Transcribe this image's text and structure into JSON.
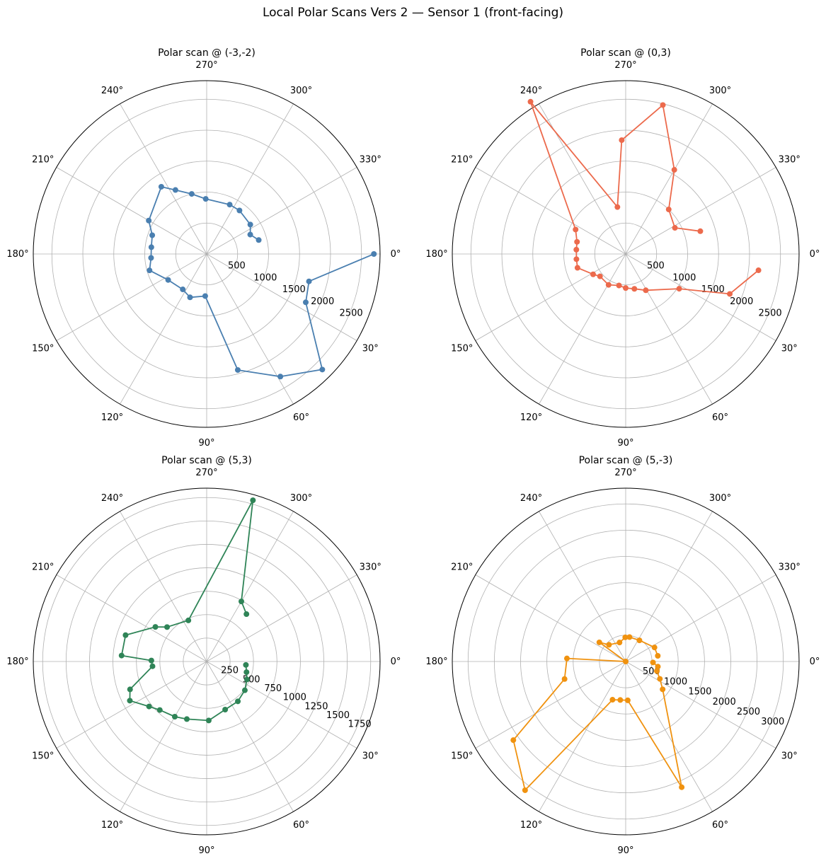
{
  "title": "Local Polar Scans Vers 2 — Sensor 1 (front-facing)",
  "chart_data": [
    {
      "type": "line",
      "projection": "polar",
      "title": "Polar scan @ (-3,-2)",
      "color": "#4a7fb0",
      "theta_direction": "clockwise",
      "theta_zero": "east",
      "theta_ticks": [
        0,
        30,
        60,
        90,
        120,
        150,
        180,
        210,
        240,
        270,
        300,
        330
      ],
      "theta_tick_labels": [
        "0°",
        "30°",
        "60°",
        "90°",
        "120°",
        "150°",
        "180°",
        "210°",
        "240°",
        "270°",
        "300°",
        "330°"
      ],
      "r_max": 2800,
      "r_ticks": [
        500,
        1000,
        1500,
        2000,
        2500
      ],
      "r_tick_labels": [
        "500",
        "1000",
        "1500",
        "2000",
        "2500"
      ],
      "grid": true,
      "points": [
        {
          "theta": 345,
          "r": 870
        },
        {
          "theta": 336,
          "r": 770
        },
        {
          "theta": 326,
          "r": 850
        },
        {
          "theta": 307,
          "r": 880
        },
        {
          "theta": 295,
          "r": 880
        },
        {
          "theta": 269,
          "r": 890
        },
        {
          "theta": 256,
          "r": 1000
        },
        {
          "theta": 244,
          "r": 1150
        },
        {
          "theta": 236,
          "r": 1310
        },
        {
          "theta": 210,
          "r": 1080
        },
        {
          "theta": 199,
          "r": 930
        },
        {
          "theta": 187,
          "r": 900
        },
        {
          "theta": 176,
          "r": 900
        },
        {
          "theta": 164,
          "r": 960
        },
        {
          "theta": 146,
          "r": 750
        },
        {
          "theta": 124,
          "r": 690
        },
        {
          "theta": 111,
          "r": 750
        },
        {
          "theta": 92,
          "r": 680
        },
        {
          "theta": 75,
          "r": 1940
        },
        {
          "theta": 59,
          "r": 2310
        },
        {
          "theta": 45,
          "r": 2640
        },
        {
          "theta": 26,
          "r": 1780
        },
        {
          "theta": 15,
          "r": 1710
        },
        {
          "theta": 0,
          "r": 2700
        }
      ]
    },
    {
      "type": "line",
      "projection": "polar",
      "title": "Polar scan @ (0,3)",
      "color": "#ec6a4c",
      "theta_direction": "clockwise",
      "theta_zero": "east",
      "theta_ticks": [
        0,
        30,
        60,
        90,
        120,
        150,
        180,
        210,
        240,
        270,
        300,
        330
      ],
      "theta_tick_labels": [
        "0°",
        "30°",
        "60°",
        "90°",
        "120°",
        "150°",
        "180°",
        "210°",
        "240°",
        "270°",
        "300°",
        "330°"
      ],
      "r_max": 2800,
      "r_ticks": [
        500,
        1000,
        1500,
        2000,
        2500
      ],
      "r_tick_labels": [
        "500",
        "1000",
        "1500",
        "2000",
        "2500"
      ],
      "grid": true,
      "points": [
        {
          "theta": 343,
          "r": 1260
        },
        {
          "theta": 332,
          "r": 900
        },
        {
          "theta": 314,
          "r": 1000
        },
        {
          "theta": 300,
          "r": 1570
        },
        {
          "theta": 284,
          "r": 2480
        },
        {
          "theta": 268,
          "r": 1840
        },
        {
          "theta": 260,
          "r": 770
        },
        {
          "theta": 238,
          "r": 2900
        },
        {
          "theta": 206,
          "r": 900
        },
        {
          "theta": 194,
          "r": 810
        },
        {
          "theta": 185,
          "r": 800
        },
        {
          "theta": 174,
          "r": 800
        },
        {
          "theta": 164,
          "r": 810
        },
        {
          "theta": 148,
          "r": 620
        },
        {
          "theta": 139,
          "r": 550
        },
        {
          "theta": 119,
          "r": 570
        },
        {
          "theta": 102,
          "r": 520
        },
        {
          "theta": 90,
          "r": 550
        },
        {
          "theta": 76,
          "r": 580
        },
        {
          "theta": 61,
          "r": 670
        },
        {
          "theta": 33,
          "r": 1030
        },
        {
          "theta": 21,
          "r": 1800
        },
        {
          "theta": 7,
          "r": 2160
        }
      ]
    },
    {
      "type": "line",
      "projection": "polar",
      "title": "Polar scan @ (5,3)",
      "color": "#2f8457",
      "theta_direction": "clockwise",
      "theta_zero": "east",
      "theta_ticks": [
        0,
        30,
        60,
        90,
        120,
        150,
        180,
        210,
        240,
        270,
        300,
        330
      ],
      "theta_tick_labels": [
        "0°",
        "30°",
        "60°",
        "90°",
        "120°",
        "150°",
        "180°",
        "210°",
        "240°",
        "270°",
        "300°",
        "330°"
      ],
      "r_max": 1850,
      "r_ticks": [
        250,
        500,
        750,
        1000,
        1250,
        1500,
        1750
      ],
      "r_tick_labels": [
        "250",
        "500",
        "750",
        "1000",
        "1250",
        "1500",
        "1750"
      ],
      "grid": true,
      "points": [
        {
          "theta": 5,
          "r": 420
        },
        {
          "theta": 15,
          "r": 440
        },
        {
          "theta": 24,
          "r": 470
        },
        {
          "theta": 37,
          "r": 510
        },
        {
          "theta": 52,
          "r": 540
        },
        {
          "theta": 69,
          "r": 550
        },
        {
          "theta": 88,
          "r": 630
        },
        {
          "theta": 109,
          "r": 650
        },
        {
          "theta": 120,
          "r": 680
        },
        {
          "theta": 134,
          "r": 720
        },
        {
          "theta": 142,
          "r": 780
        },
        {
          "theta": 153,
          "r": 920
        },
        {
          "theta": 160,
          "r": 870
        },
        {
          "theta": 175,
          "r": 580
        },
        {
          "theta": 181,
          "r": 590
        },
        {
          "theta": 184,
          "r": 910
        },
        {
          "theta": 198,
          "r": 910
        },
        {
          "theta": 214,
          "r": 660
        },
        {
          "theta": 221,
          "r": 560
        },
        {
          "theta": 246,
          "r": 480
        },
        {
          "theta": 286,
          "r": 1790
        },
        {
          "theta": 300,
          "r": 740
        },
        {
          "theta": 310,
          "r": 660
        }
      ]
    },
    {
      "type": "line",
      "projection": "polar",
      "title": "Polar scan @ (5,-3)",
      "color": "#f0920f",
      "theta_direction": "clockwise",
      "theta_zero": "east",
      "theta_ticks": [
        0,
        30,
        60,
        90,
        120,
        150,
        180,
        210,
        240,
        270,
        300,
        330
      ],
      "theta_tick_labels": [
        "0°",
        "30°",
        "60°",
        "90°",
        "120°",
        "150°",
        "180°",
        "210°",
        "240°",
        "270°",
        "300°",
        "330°"
      ],
      "r_max": 3300,
      "r_ticks": [
        500,
        1000,
        1500,
        2000,
        2500,
        3000
      ],
      "r_tick_labels": [
        "500",
        "1000",
        "1500",
        "2000",
        "2500",
        "3000"
      ],
      "grid": true,
      "points": [
        {
          "theta": 350,
          "r": 620
        },
        {
          "theta": 334,
          "r": 610
        },
        {
          "theta": 303,
          "r": 480
        },
        {
          "theta": 279,
          "r": 470
        },
        {
          "theta": 269,
          "r": 460
        },
        {
          "theta": 252,
          "r": 380
        },
        {
          "theta": 225,
          "r": 450
        },
        {
          "theta": 216,
          "r": 620
        },
        {
          "theta": 180,
          "r": 0
        },
        {
          "theta": 183,
          "r": 1120
        },
        {
          "theta": 164,
          "r": 1210
        },
        {
          "theta": 145,
          "r": 2610
        },
        {
          "theta": 128,
          "r": 3110
        },
        {
          "theta": 109,
          "r": 770
        },
        {
          "theta": 98,
          "r": 740
        },
        {
          "theta": 87,
          "r": 740
        },
        {
          "theta": 66,
          "r": 2620
        },
        {
          "theta": 37,
          "r": 880
        },
        {
          "theta": 27,
          "r": 730
        },
        {
          "theta": 17,
          "r": 620
        },
        {
          "theta": 9,
          "r": 620
        },
        {
          "theta": 2,
          "r": 520
        }
      ]
    }
  ]
}
